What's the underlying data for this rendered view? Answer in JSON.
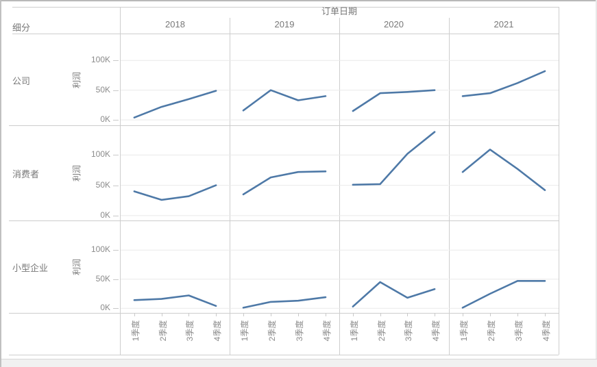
{
  "window": {
    "bg": "#ffffff",
    "border_color": "#b9b9b9",
    "scrollbar_track_color": "#f1f1f1"
  },
  "chart_data": {
    "type": "line",
    "title": "订单日期",
    "row_dimension_label": "细分",
    "col_headers": [
      "2018",
      "2019",
      "2020",
      "2021"
    ],
    "x_categories": [
      "1季度",
      "2季度",
      "3季度",
      "4季度"
    ],
    "y_axis": {
      "label": "利润",
      "unit": "K",
      "tick_values": [
        0,
        50,
        100
      ],
      "tick_labels": [
        "0K",
        "50K",
        "100K"
      ]
    },
    "line_color": "#4e79a7",
    "grid_color": "#e9e9e9",
    "legend": "none",
    "rows": [
      {
        "label": "公司",
        "ylim": [
          -9,
          144
        ],
        "series": [
          {
            "year": "2018",
            "values": [
              4,
              22,
              35,
              49
            ]
          },
          {
            "year": "2019",
            "values": [
              16,
              50,
              33,
              40
            ]
          },
          {
            "year": "2020",
            "values": [
              15,
              45,
              47,
              50
            ]
          },
          {
            "year": "2021",
            "values": [
              40,
              45,
              62,
              82
            ]
          }
        ]
      },
      {
        "label": "消费者",
        "ylim": [
          -8,
          149
        ],
        "series": [
          {
            "year": "2018",
            "values": [
              40,
              26,
              32,
              50
            ]
          },
          {
            "year": "2019",
            "values": [
              35,
              63,
              72,
              73
            ]
          },
          {
            "year": "2020",
            "values": [
              51,
              52,
              102,
              138
            ]
          },
          {
            "year": "2021",
            "values": [
              72,
              109,
              77,
              42
            ]
          }
        ]
      },
      {
        "label": "小型企业",
        "ylim": [
          -8,
          151
        ],
        "series": [
          {
            "year": "2018",
            "values": [
              14,
              16,
              22,
              4
            ]
          },
          {
            "year": "2019",
            "values": [
              1,
              11,
              13,
              19
            ]
          },
          {
            "year": "2020",
            "values": [
              3,
              45,
              18,
              33
            ]
          },
          {
            "year": "2021",
            "values": [
              1,
              25,
              47,
              47
            ]
          }
        ]
      }
    ]
  }
}
